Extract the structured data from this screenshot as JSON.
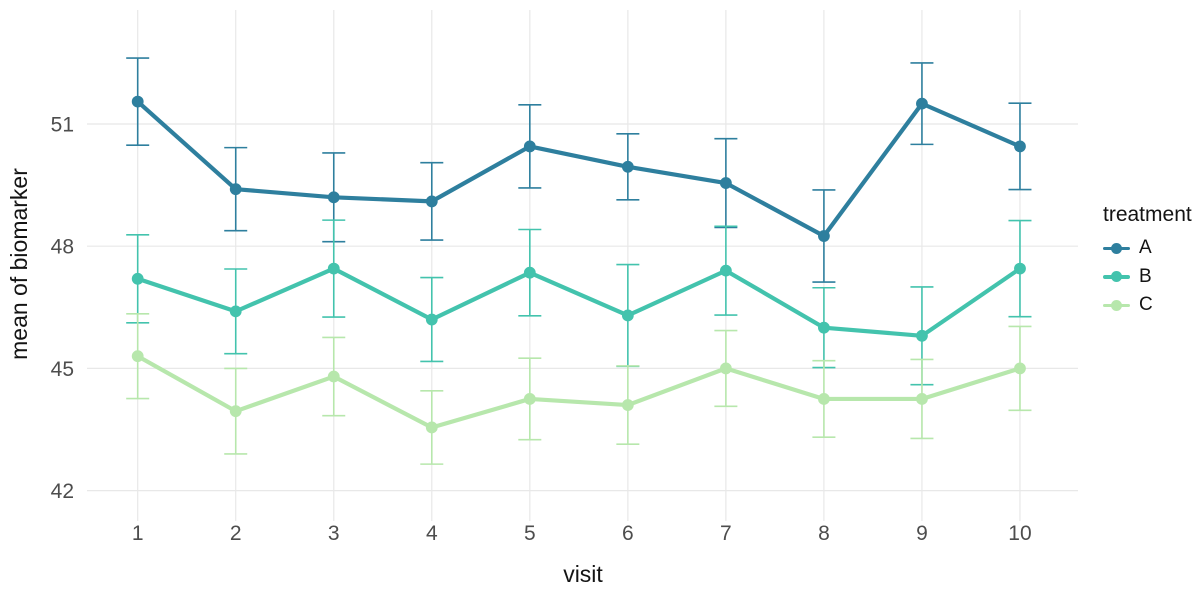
{
  "figure": {
    "background": "#ffffff",
    "grid_color": "#e8e8e8",
    "tick_label_color": "#4d4d4d",
    "axis_title_color": "#141414"
  },
  "chart_data": {
    "type": "line",
    "title": "",
    "xlabel": "visit",
    "ylabel": "mean of biomarker",
    "x": [
      1,
      2,
      3,
      4,
      5,
      6,
      7,
      8,
      9,
      10
    ],
    "x_tick_labels": [
      "1",
      "2",
      "3",
      "4",
      "5",
      "6",
      "7",
      "8",
      "9",
      "10"
    ],
    "y_ticks": [
      51,
      48,
      45,
      42
    ],
    "ylim": [
      41.2,
      53.8
    ],
    "grid": true,
    "error_bars": true,
    "legend_title": "treatment",
    "legend_position": "right",
    "series": [
      {
        "name": "A",
        "color": "#2e7f9e",
        "values": [
          51.55,
          49.4,
          49.2,
          49.1,
          50.45,
          49.95,
          49.55,
          48.25,
          51.5,
          50.45
        ],
        "error": [
          1.07,
          1.02,
          1.09,
          0.95,
          1.02,
          0.81,
          1.09,
          1.13,
          1.0,
          1.06
        ]
      },
      {
        "name": "B",
        "color": "#43c3ad",
        "values": [
          47.2,
          46.4,
          47.45,
          46.2,
          47.35,
          46.3,
          47.4,
          46.0,
          45.8,
          47.45
        ],
        "error": [
          1.08,
          1.04,
          1.19,
          1.03,
          1.06,
          1.25,
          1.09,
          0.98,
          1.2,
          1.18
        ]
      },
      {
        "name": "C",
        "color": "#b7e7ac",
        "values": [
          45.3,
          43.95,
          44.8,
          43.55,
          44.25,
          44.1,
          45.0,
          44.25,
          44.25,
          45.0
        ],
        "error": [
          1.04,
          1.05,
          0.96,
          0.9,
          1.0,
          0.96,
          0.93,
          0.94,
          0.97,
          1.03
        ]
      }
    ]
  }
}
